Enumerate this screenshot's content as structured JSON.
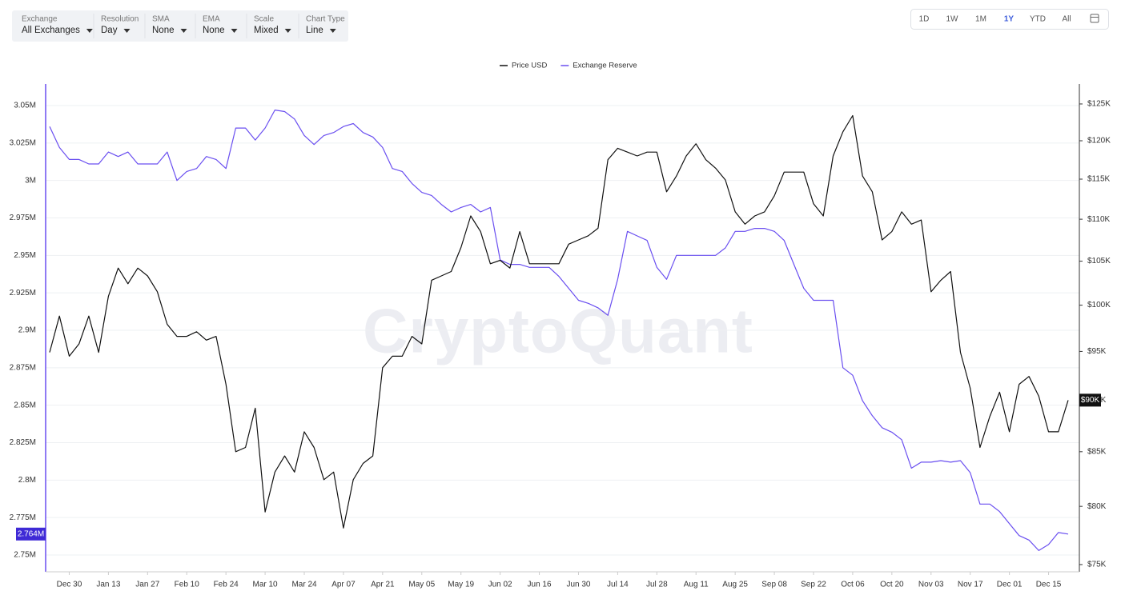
{
  "toolbar": {
    "filters": [
      {
        "label": "Exchange",
        "value": "All Exchanges"
      },
      {
        "label": "Resolution",
        "value": "Day"
      },
      {
        "label": "SMA",
        "value": "None"
      },
      {
        "label": "EMA",
        "value": "None"
      },
      {
        "label": "Scale",
        "value": "Mixed"
      },
      {
        "label": "Chart Type",
        "value": "Line"
      }
    ],
    "ranges": [
      "1D",
      "1W",
      "1M",
      "1Y",
      "YTD",
      "All"
    ]
  },
  "watermark": "CryptoQuant",
  "chart_data": {
    "type": "line",
    "categories": [
      null,
      null,
      "Dec 30",
      null,
      null,
      null,
      "Jan 13",
      null,
      null,
      null,
      "Jan 27",
      null,
      null,
      null,
      "Feb 10",
      null,
      null,
      null,
      "Feb 24",
      null,
      null,
      null,
      "Mar 10",
      null,
      null,
      null,
      "Mar 24",
      null,
      null,
      null,
      "Apr 07",
      null,
      null,
      null,
      "Apr 21",
      null,
      null,
      null,
      "May 05",
      null,
      null,
      null,
      "May 19",
      null,
      null,
      null,
      "Jun 02",
      null,
      null,
      null,
      "Jun 16",
      null,
      null,
      null,
      "Jun 30",
      null,
      null,
      null,
      "Jul 14",
      null,
      null,
      null,
      "Jul 28",
      null,
      null,
      null,
      "Aug 11",
      null,
      null,
      null,
      "Aug 25",
      null,
      null,
      null,
      "Sep 08",
      null,
      null,
      null,
      "Sep 22",
      null,
      null,
      null,
      "Oct 06",
      null,
      null,
      null,
      "Oct 20",
      null,
      null,
      null,
      "Nov 03",
      null,
      null,
      null,
      "Nov 17",
      null,
      null,
      null,
      "Dec 01",
      null,
      null,
      null,
      "Dec 15",
      null,
      null
    ],
    "series": [
      {
        "name": "Price USD",
        "color": "#111111",
        "axis": "y2",
        "values": [
          94900,
          98800,
          94500,
          95800,
          98800,
          94900,
          101000,
          104200,
          102400,
          104200,
          103300,
          101500,
          97900,
          96600,
          96600,
          97100,
          96200,
          96600,
          91600,
          85000,
          85400,
          89200,
          79500,
          83100,
          84600,
          83100,
          86900,
          85400,
          82400,
          83100,
          78100,
          82400,
          83900,
          84600,
          93300,
          94500,
          94500,
          96600,
          95800,
          102800,
          103300,
          103800,
          106600,
          110400,
          108500,
          104700,
          105100,
          104200,
          108500,
          104700,
          104700,
          104700,
          104700,
          107000,
          107500,
          108000,
          108900,
          117500,
          119000,
          118500,
          118000,
          118500,
          118500,
          113400,
          115400,
          118000,
          119600,
          117500,
          116400,
          114900,
          110900,
          109400,
          110400,
          110900,
          112900,
          115900,
          115900,
          115900,
          111900,
          110400,
          118000,
          121200,
          123400,
          115400,
          113400,
          107500,
          108500,
          110900,
          109400,
          109900,
          101500,
          102800,
          103800,
          94900,
          91200,
          85400,
          88400,
          90800,
          86900,
          91600,
          92400,
          90400,
          86900,
          86900,
          90000
        ]
      },
      {
        "name": "Exchange Reserve",
        "color": "#6a4ff0",
        "values": [
          3036000,
          3022000,
          3014000,
          3014000,
          3011000,
          3011000,
          3019000,
          3016000,
          3019000,
          3011000,
          3011000,
          3011000,
          3019000,
          3000000,
          3006000,
          3008000,
          3016000,
          3014000,
          3008000,
          3035000,
          3035000,
          3027000,
          3035000,
          3047000,
          3046000,
          3041000,
          3030000,
          3024000,
          3030000,
          3032000,
          3036000,
          3038000,
          3032000,
          3029000,
          3022000,
          3008000,
          3006000,
          2998000,
          2992000,
          2990000,
          2984000,
          2979000,
          2982000,
          2984000,
          2979000,
          2982000,
          2947000,
          2944000,
          2944000,
          2942000,
          2942000,
          2942000,
          2936000,
          2928000,
          2920000,
          2918000,
          2915000,
          2910000,
          2934000,
          2966000,
          2963000,
          2960000,
          2942000,
          2934000,
          2950000,
          2950000,
          2950000,
          2950000,
          2950000,
          2955000,
          2966000,
          2966000,
          2968000,
          2968000,
          2966000,
          2960000,
          2944000,
          2928000,
          2920000,
          2920000,
          2920000,
          2875000,
          2870000,
          2853000,
          2843000,
          2835000,
          2832000,
          2827000,
          2808000,
          2812000,
          2812000,
          2813000,
          2812000,
          2813000,
          2805000,
          2784000,
          2784000,
          2779000,
          2771000,
          2763000,
          2760000,
          2753000,
          2757000,
          2765000,
          2764000
        ]
      }
    ],
    "ylim": [
      2738800,
      3064400
    ],
    "yticks": [
      {
        "value": 3050000,
        "label": "3.05M"
      },
      {
        "value": 3025000,
        "label": "3.025M"
      },
      {
        "value": 3000000,
        "label": "3M"
      },
      {
        "value": 2975000,
        "label": "2.975M"
      },
      {
        "value": 2950000,
        "label": "2.95M"
      },
      {
        "value": 2925000,
        "label": "2.925M"
      },
      {
        "value": 2900000,
        "label": "2.9M"
      },
      {
        "value": 2875000,
        "label": "2.875M"
      },
      {
        "value": 2850000,
        "label": "2.85M"
      },
      {
        "value": 2825000,
        "label": "2.825M"
      },
      {
        "value": 2800000,
        "label": "2.8M"
      },
      {
        "value": 2775000,
        "label": "2.775M"
      },
      {
        "value": 2750000,
        "label": "2.75M"
      }
    ],
    "y2lim": [
      74400,
      127800
    ],
    "y2scale": "log",
    "y2ticks": [
      {
        "value": 125000,
        "label": "$125K"
      },
      {
        "value": 120000,
        "label": "$120K"
      },
      {
        "value": 115000,
        "label": "$115K"
      },
      {
        "value": 110000,
        "label": "$110K"
      },
      {
        "value": 105000,
        "label": "$105K"
      },
      {
        "value": 100000,
        "label": "$100K"
      },
      {
        "value": 95000,
        "label": "$95K"
      },
      {
        "value": 90000,
        "label": "$90K"
      },
      {
        "value": 85000,
        "label": "$85K"
      },
      {
        "value": 80000,
        "label": "$80K"
      },
      {
        "value": 75000,
        "label": "$75K"
      }
    ],
    "y_marker": {
      "value": 2764000,
      "label": "2.764M"
    },
    "y2_marker": {
      "value": 90000,
      "label": "$90K"
    },
    "grid": true,
    "legend": "top"
  }
}
